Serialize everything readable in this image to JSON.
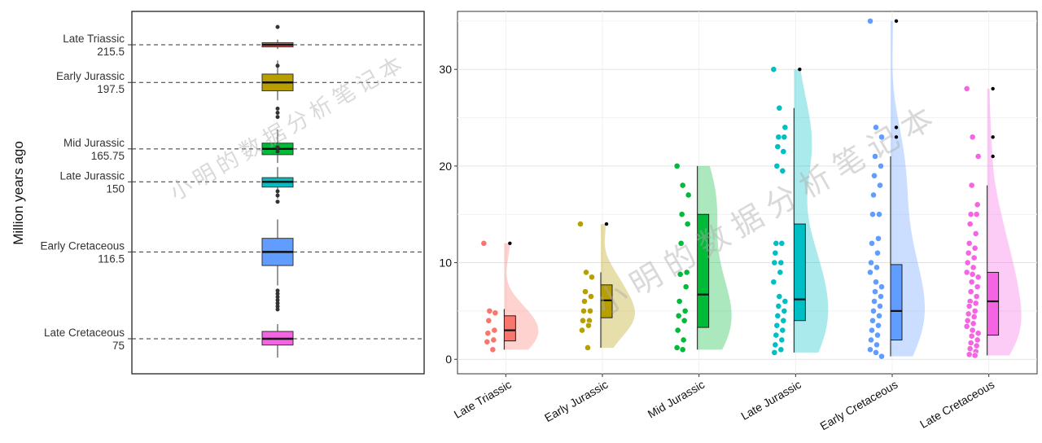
{
  "chart_data": [
    {
      "type": "boxplot",
      "title": "",
      "ylabel": "Million years ago",
      "ylim": [
        60,
        225
      ],
      "ticks": [
        {
          "name": "Late Triassic",
          "value": "215.5",
          "y": 215.5
        },
        {
          "name": "Early Jurassic",
          "value": "197.5",
          "y": 197.5
        },
        {
          "name": "Mid Jurassic",
          "value": "165.75",
          "y": 165.75
        },
        {
          "name": "Late Jurassic",
          "value": "150",
          "y": 150
        },
        {
          "name": "Early Cretaceous",
          "value": "116.5",
          "y": 116.5
        },
        {
          "name": "Late Cretaceous",
          "value": "75",
          "y": 75
        }
      ],
      "boxes": [
        {
          "name": "Late Triassic",
          "color": "#F8766D",
          "q1": 214.5,
          "median": 215.5,
          "q3": 216.5,
          "lower": 213.5,
          "upper": 218,
          "outliers": [
            224
          ]
        },
        {
          "name": "Early Jurassic",
          "color": "#B79F00",
          "q1": 193.5,
          "median": 197.5,
          "q3": 201.5,
          "lower": 189,
          "upper": 208,
          "outliers": [
            205.5,
            185,
            183,
            181
          ]
        },
        {
          "name": "Mid Jurassic",
          "color": "#00BA38",
          "q1": 163,
          "median": 165.75,
          "q3": 168.5,
          "lower": 159,
          "upper": 175,
          "outliers": [
            164.5,
            166.5
          ]
        },
        {
          "name": "Late Jurassic",
          "color": "#00BFC4",
          "q1": 147.5,
          "median": 150,
          "q3": 152,
          "lower": 142,
          "upper": 157,
          "outliers": [
            145.5,
            143.5,
            140.5
          ]
        },
        {
          "name": "Early Cretaceous",
          "color": "#619CFF",
          "q1": 110,
          "median": 116.5,
          "q3": 123,
          "lower": 100.5,
          "upper": 132,
          "outliers": []
        },
        {
          "name": "Late Cretaceous",
          "color": "#F564E3",
          "q1": 72,
          "median": 75,
          "q3": 78.5,
          "lower": 66,
          "upper": 82,
          "outliers": [
            98,
            96.5,
            95,
            93.5,
            92,
            90.5,
            89
          ]
        }
      ]
    },
    {
      "type": "raincloud",
      "title": "",
      "xlabel": "",
      "ylabel": "",
      "ylim": [
        -1.5,
        36
      ],
      "yticks": [
        0,
        10,
        20,
        30
      ],
      "categories": [
        "Late Triassic",
        "Early Jurassic",
        "Mid Jurassic",
        "Late Jurassic",
        "Early Cretaceous",
        "Late Cretaceous"
      ],
      "series": [
        {
          "name": "Late Triassic",
          "color": "#F8766D",
          "q1": 1.9,
          "median": 3.0,
          "q3": 4.5,
          "lower": 1.0,
          "upper": 5.2,
          "outliers": [
            12
          ],
          "points": [
            12,
            5,
            4.8,
            4,
            3,
            2.7,
            2,
            1.8,
            1.0
          ]
        },
        {
          "name": "Early Jurassic",
          "color": "#B79F00",
          "q1": 4.3,
          "median": 6.1,
          "q3": 7.7,
          "lower": 1.2,
          "upper": 9,
          "outliers": [
            14
          ],
          "points": [
            14,
            9,
            8.5,
            7,
            6.5,
            6,
            5,
            5,
            4,
            4,
            3.5,
            3,
            1.2
          ]
        },
        {
          "name": "Mid Jurassic",
          "color": "#00BA38",
          "q1": 3.3,
          "median": 6.7,
          "q3": 15,
          "lower": 1,
          "upper": 20,
          "outliers": [],
          "points": [
            20,
            18,
            17,
            15,
            14,
            12,
            9,
            8.8,
            7.5,
            6,
            5,
            4.5,
            4,
            3,
            2,
            1.2,
            1
          ]
        },
        {
          "name": "Late Jurassic",
          "color": "#00BFC4",
          "q1": 4,
          "median": 6.2,
          "q3": 14,
          "lower": 0.7,
          "upper": 26,
          "outliers": [
            30
          ],
          "points": [
            30,
            26,
            24,
            23,
            23,
            22,
            21.5,
            20,
            19.5,
            12,
            12,
            11,
            10,
            10,
            9,
            8,
            6.5,
            6,
            5.5,
            5,
            4.5,
            4,
            3.5,
            3,
            2.5,
            2,
            1.5,
            1,
            0.7
          ]
        },
        {
          "name": "Early Cretaceous",
          "color": "#619CFF",
          "q1": 2,
          "median": 5,
          "q3": 9.8,
          "lower": 0.3,
          "upper": 21,
          "outliers": [
            35,
            24,
            23
          ],
          "points": [
            35,
            24,
            23,
            21,
            20,
            19,
            18,
            17,
            15,
            15,
            12.5,
            12,
            11,
            10,
            9.5,
            9,
            8,
            7.5,
            7,
            6.5,
            6,
            5.5,
            5,
            4.5,
            4,
            3.5,
            3,
            2.5,
            2,
            1.5,
            1,
            0.7,
            0.3
          ]
        },
        {
          "name": "Late Cretaceous",
          "color": "#F564E3",
          "q1": 2.5,
          "median": 6,
          "q3": 9,
          "lower": 0.4,
          "upper": 18,
          "outliers": [
            28,
            23,
            21
          ],
          "points": [
            28,
            23,
            21,
            18,
            16,
            15,
            15,
            14,
            13,
            12,
            11.5,
            11,
            10.5,
            10,
            9.5,
            9,
            8.8,
            8.5,
            8,
            7.5,
            7,
            6.5,
            6,
            5.8,
            5.5,
            5,
            4.7,
            4.4,
            4,
            3.7,
            3.4,
            3,
            2.7,
            2.4,
            2,
            1.7,
            1.4,
            1.1,
            0.8,
            0.5,
            0.4
          ]
        }
      ]
    }
  ],
  "watermark": "小明的数据分析笔记本"
}
